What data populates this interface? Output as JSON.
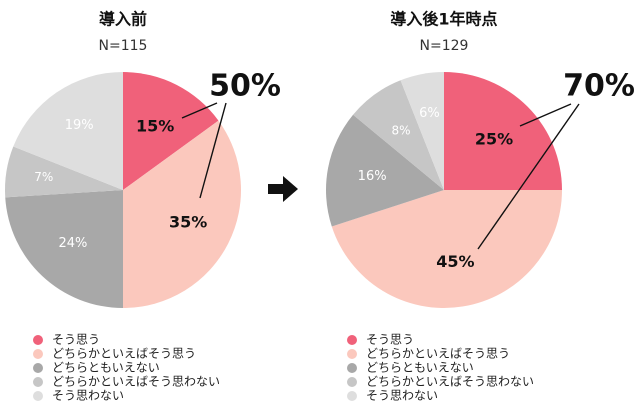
{
  "chart_data": [
    {
      "type": "pie",
      "title": "導入前",
      "subtitle": "N=115",
      "slices": [
        {
          "label": "そう思う",
          "value": 15,
          "display": "15%"
        },
        {
          "label": "どちらかといえばそう思う",
          "value": 35,
          "display": "35%"
        },
        {
          "label": "どちらともいえない",
          "value": 24,
          "display": "24%"
        },
        {
          "label": "どちらかといえばそう思わない",
          "value": 7,
          "display": "7%"
        },
        {
          "label": "そう思わない",
          "value": 19,
          "display": "19%"
        }
      ],
      "callout": "50%",
      "legend": "bottom"
    },
    {
      "type": "pie",
      "title": "導入後1年時点",
      "subtitle": "N=129",
      "slices": [
        {
          "label": "そう思う",
          "value": 25,
          "display": "25%"
        },
        {
          "label": "どちらかといえばそう思う",
          "value": 45,
          "display": "45%"
        },
        {
          "label": "どちらともいえない",
          "value": 16,
          "display": "16%"
        },
        {
          "label": "どちらかといえばそう思わない",
          "value": 8,
          "display": "8%"
        },
        {
          "label": "そう思わない",
          "value": 6,
          "display": "6%"
        }
      ],
      "callout": "70%",
      "legend": "bottom"
    }
  ],
  "colors": [
    "#f0617a",
    "#fbc8bd",
    "#a8a8a8",
    "#c6c6c6",
    "#dedede"
  ],
  "label_colors": [
    "#111111",
    "#111111",
    "#ffffff",
    "#ffffff",
    "#ffffff"
  ],
  "arrow_icon": "right-arrow-icon"
}
